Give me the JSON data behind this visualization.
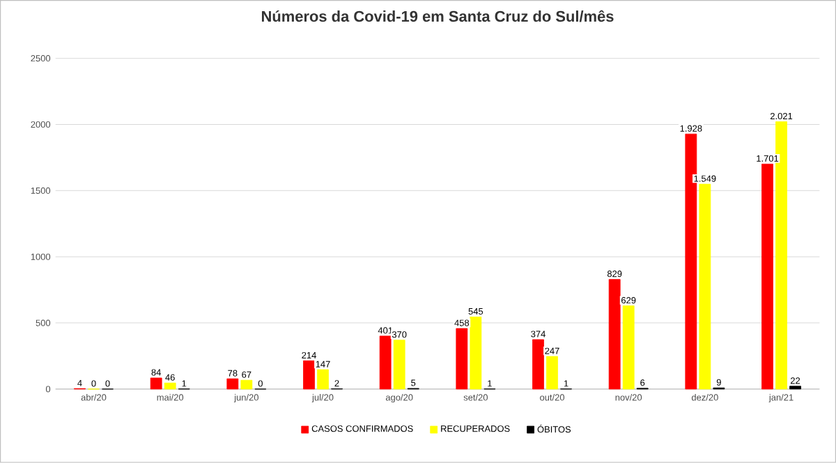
{
  "chart_data": {
    "type": "bar",
    "title": "Números da Covid-19 em Santa Cruz do Sul/mês",
    "categories": [
      "abr/20",
      "mai/20",
      "jun/20",
      "jul/20",
      "ago/20",
      "set/20",
      "out/20",
      "nov/20",
      "dez/20",
      "jan/21"
    ],
    "series": [
      {
        "name": "CASOS CONFIRMADOS",
        "color": "#ff0000",
        "values": [
          4,
          84,
          78,
          214,
          401,
          458,
          374,
          829,
          1928,
          1701
        ],
        "value_labels": [
          "4",
          "84",
          "78",
          "214",
          "401",
          "458",
          "374",
          "829",
          "1.928",
          "1.701"
        ]
      },
      {
        "name": "RECUPERADOS",
        "color": "#ffff00",
        "values": [
          0,
          46,
          67,
          147,
          370,
          545,
          247,
          629,
          1549,
          2021
        ],
        "value_labels": [
          "0",
          "46",
          "67",
          "147",
          "370",
          "545",
          "247",
          "629",
          "1.549",
          "2.021"
        ]
      },
      {
        "name": "ÓBITOS",
        "color": "#000000",
        "values": [
          0,
          1,
          0,
          2,
          5,
          1,
          1,
          6,
          9,
          22
        ],
        "value_labels": [
          "0",
          "1",
          "0",
          "2",
          "5",
          "1",
          "1",
          "6",
          "9",
          "22"
        ]
      }
    ],
    "ylim": [
      0,
      2500
    ],
    "yticks": [
      0,
      500,
      1000,
      1500,
      2000,
      2500
    ],
    "grid": "y",
    "legend": "bottom"
  }
}
